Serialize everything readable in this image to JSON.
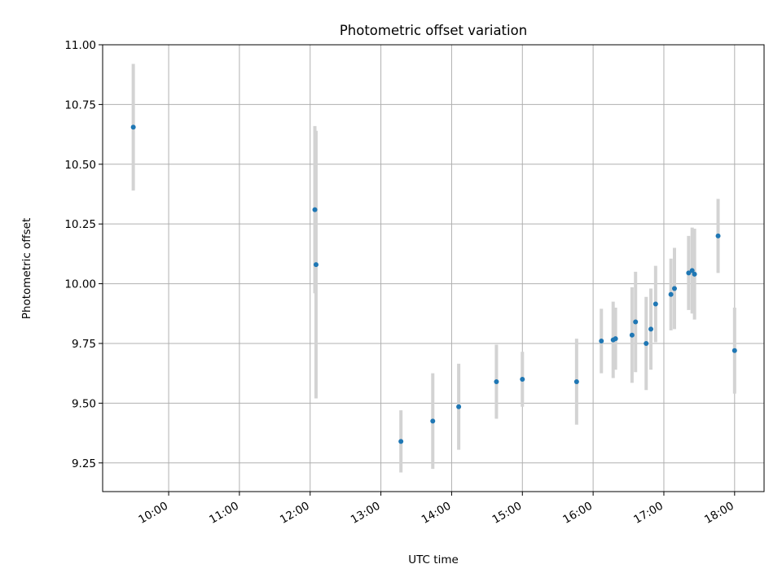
{
  "chart_data": {
    "type": "scatter",
    "title": "Photometric offset variation",
    "xlabel": "UTC time",
    "ylabel": "Photometric offset",
    "xlim": [
      "09:04",
      "18:25"
    ],
    "ylim": [
      9.13,
      11.0
    ],
    "xticks": [
      "10:00",
      "11:00",
      "12:00",
      "13:00",
      "14:00",
      "15:00",
      "16:00",
      "17:00",
      "18:00"
    ],
    "yticks": [
      "9.25",
      "9.50",
      "9.75",
      "10.00",
      "10.25",
      "10.50",
      "10.75",
      "11.00"
    ],
    "grid": true,
    "marker_color": "#1f77b4",
    "errorbar_color": "#d3d3d3",
    "points": [
      {
        "x": "09:30",
        "y": 10.655,
        "yerr": 0.265
      },
      {
        "x": "12:04",
        "y": 10.31,
        "yerr": 0.35
      },
      {
        "x": "12:05",
        "y": 10.08,
        "yerr": 0.56
      },
      {
        "x": "13:17",
        "y": 9.34,
        "yerr": 0.13
      },
      {
        "x": "13:44",
        "y": 9.425,
        "yerr": 0.2
      },
      {
        "x": "14:06",
        "y": 9.485,
        "yerr": 0.18
      },
      {
        "x": "14:38",
        "y": 9.59,
        "yerr": 0.155
      },
      {
        "x": "15:00",
        "y": 9.6,
        "yerr": 0.115
      },
      {
        "x": "15:46",
        "y": 9.59,
        "yerr": 0.18
      },
      {
        "x": "16:07",
        "y": 9.76,
        "yerr": 0.135
      },
      {
        "x": "16:17",
        "y": 9.765,
        "yerr": 0.16
      },
      {
        "x": "16:19",
        "y": 9.77,
        "yerr": 0.13
      },
      {
        "x": "16:33",
        "y": 9.785,
        "yerr": 0.2
      },
      {
        "x": "16:36",
        "y": 9.84,
        "yerr": 0.21
      },
      {
        "x": "16:45",
        "y": 9.75,
        "yerr": 0.195
      },
      {
        "x": "16:49",
        "y": 9.81,
        "yerr": 0.17
      },
      {
        "x": "16:53",
        "y": 9.915,
        "yerr": 0.16
      },
      {
        "x": "17:06",
        "y": 9.955,
        "yerr": 0.15
      },
      {
        "x": "17:09",
        "y": 9.98,
        "yerr": 0.17
      },
      {
        "x": "17:21",
        "y": 10.045,
        "yerr": 0.155
      },
      {
        "x": "17:24",
        "y": 10.055,
        "yerr": 0.18
      },
      {
        "x": "17:26",
        "y": 10.04,
        "yerr": 0.19
      },
      {
        "x": "17:46",
        "y": 10.2,
        "yerr": 0.155
      },
      {
        "x": "18:00",
        "y": 9.72,
        "yerr": 0.18
      }
    ]
  }
}
